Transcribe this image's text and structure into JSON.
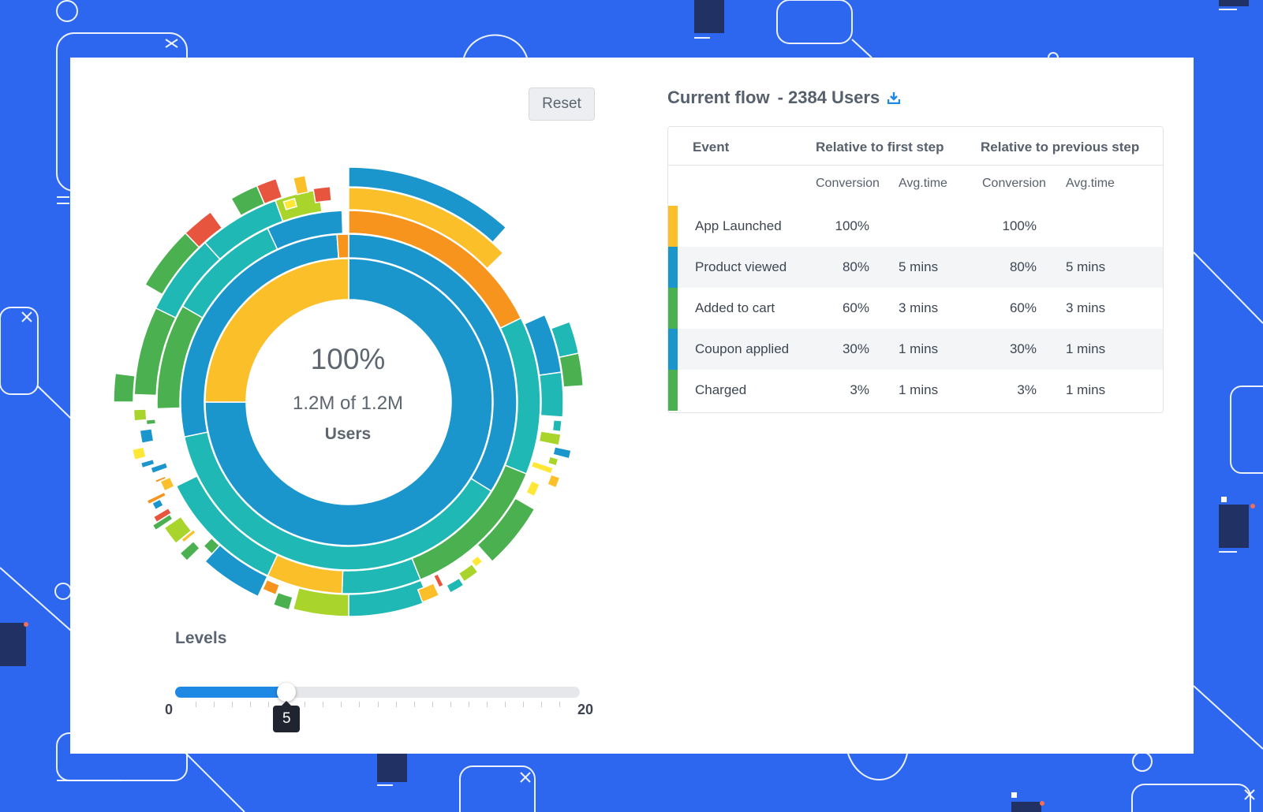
{
  "colors": {
    "background": "#2d67ef",
    "accent": "#1e88e5",
    "yellow": "#fbbf2a",
    "blue": "#1a96cd",
    "green": "#4bb04f",
    "teal": "#1fb8b4",
    "orange": "#f7941d",
    "red": "#e8553e",
    "lime": "#a8d42b"
  },
  "reset_label": "Reset",
  "sunburst": {
    "center_percent": "100%",
    "center_count": "1.2M of 1.2M",
    "center_unit": "Users"
  },
  "levels": {
    "label": "Levels",
    "min": "0",
    "max": "20",
    "value": 5,
    "value_label": "5"
  },
  "flow": {
    "title": "Current flow",
    "users": "- 2384 Users",
    "download_icon": "download-icon"
  },
  "table": {
    "col_event": "Event",
    "group_first": "Relative to first step",
    "group_previous": "Relative to previous step",
    "sub_conversion": "Conversion",
    "sub_avgtime": "Avg.time",
    "rows": [
      {
        "event": "App Launched",
        "color": "#fbbf2a",
        "first_conv": "100%",
        "first_time": "",
        "prev_conv": "100%",
        "prev_time": ""
      },
      {
        "event": "Product viewed",
        "color": "#1a96cd",
        "first_conv": "80%",
        "first_time": "5 mins",
        "prev_conv": "80%",
        "prev_time": "5 mins"
      },
      {
        "event": "Added to cart",
        "color": "#4bb04f",
        "first_conv": "60%",
        "first_time": "3 mins",
        "prev_conv": "60%",
        "prev_time": "3 mins"
      },
      {
        "event": "Coupon applied",
        "color": "#1a96cd",
        "first_conv": "30%",
        "first_time": "1 mins",
        "prev_conv": "30%",
        "prev_time": "1 mins"
      },
      {
        "event": "Charged",
        "color": "#4bb04f",
        "first_conv": "3%",
        "first_time": "1 mins",
        "prev_conv": "3%",
        "prev_time": "1 mins"
      }
    ]
  }
}
